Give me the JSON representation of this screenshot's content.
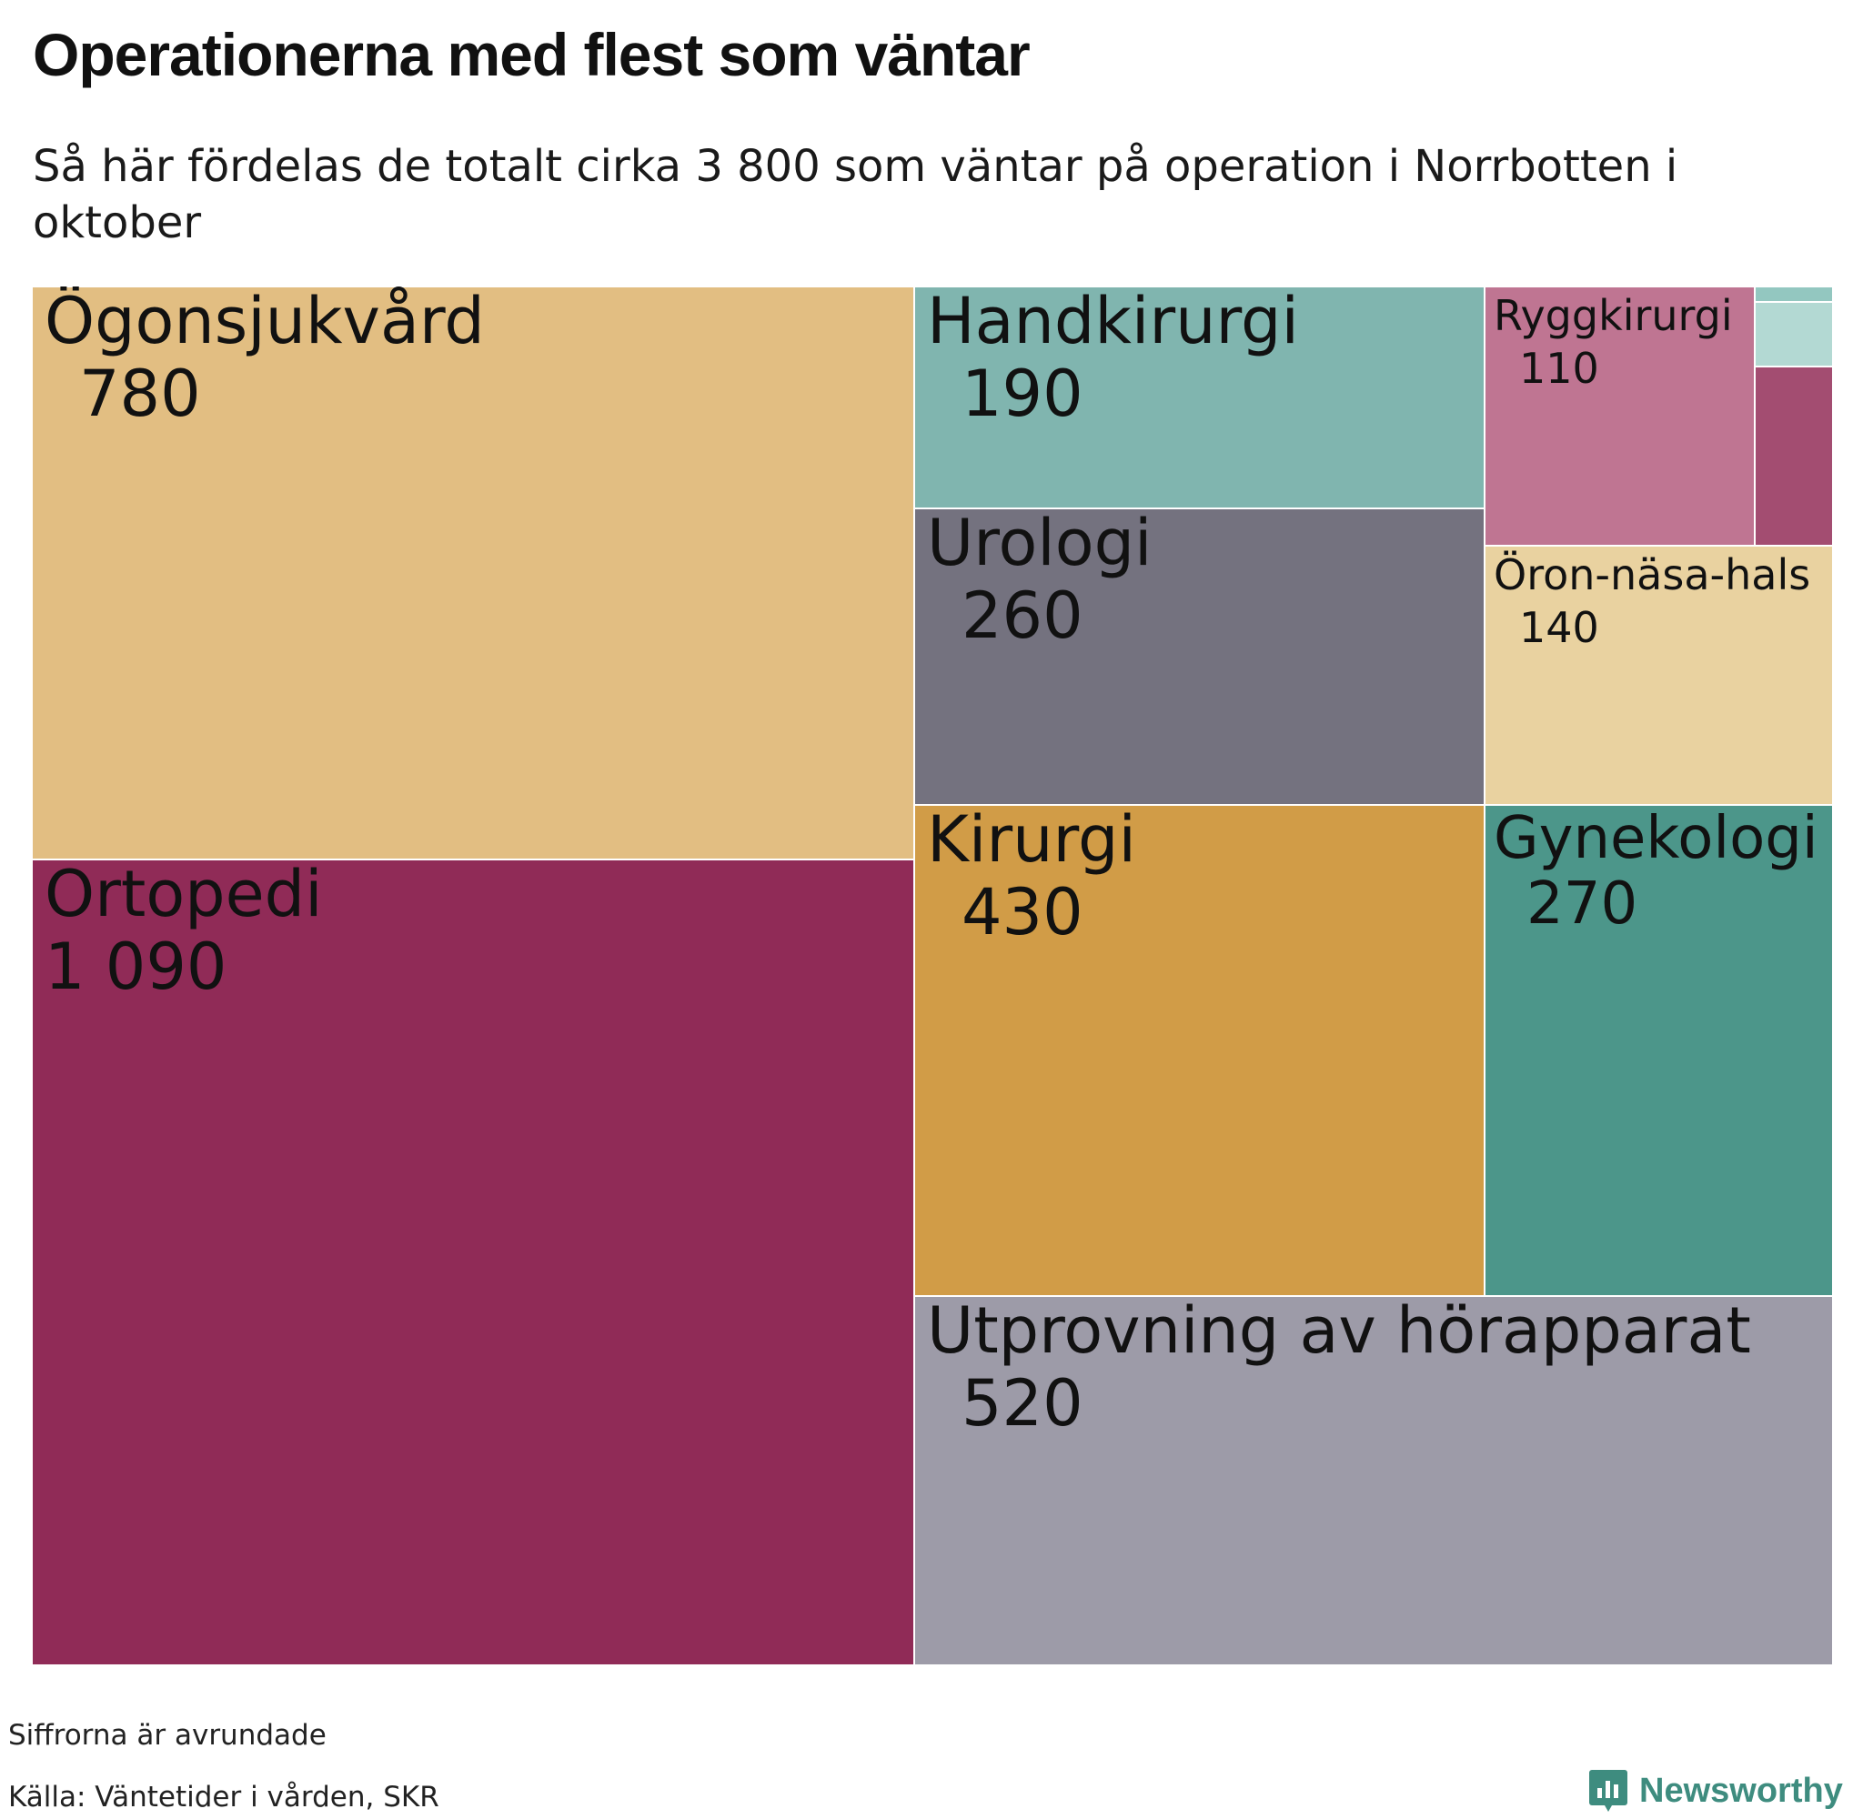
{
  "header": {
    "title": "Operationerna med flest som väntar",
    "subtitle": "Så här fördelas de totalt cirka 3 800 som väntar på operation i Norrbotten i oktober"
  },
  "footer": {
    "note": "Siffrorna är avrundade",
    "source": "Källa: Väntetider i vården, SKR",
    "brand": "Newsworthy"
  },
  "colors": {
    "brand": "#3e8c7f"
  },
  "chart_data": {
    "type": "treemap",
    "title": "Operationerna med flest som väntar",
    "subtitle": "Så här fördelas de totalt cirka 3 800 som väntar på operation i Norrbotten i oktober",
    "total_approx": 3800,
    "items": [
      {
        "label": "Ortopedi",
        "value": 1090,
        "value_label": "1 090",
        "color": "#902b57"
      },
      {
        "label": "Ögonsjukvård",
        "value": 780,
        "value_label": "780",
        "color": "#e2be82"
      },
      {
        "label": "Utprovning av hörapparat",
        "value": 520,
        "value_label": "520",
        "color": "#9d9ba8"
      },
      {
        "label": "Kirurgi",
        "value": 430,
        "value_label": "430",
        "color": "#d19c47"
      },
      {
        "label": "Gynekologi",
        "value": 270,
        "value_label": "270",
        "color": "#4c968a"
      },
      {
        "label": "Urologi",
        "value": 260,
        "value_label": "260",
        "color": "#74727f"
      },
      {
        "label": "Handkirurgi",
        "value": 190,
        "value_label": "190",
        "color": "#80b5af"
      },
      {
        "label": "Öron-näsa-hals",
        "value": 140,
        "value_label": "140",
        "color": "#e9d2a0"
      },
      {
        "label": "Ryggkirurgi",
        "value": 110,
        "value_label": "110",
        "color": "#bf7592"
      },
      {
        "label": "",
        "value": 30,
        "value_label": "",
        "color": "#a34d71"
      },
      {
        "label": "",
        "value": 15,
        "value_label": "",
        "color": "#b3d9d3"
      },
      {
        "label": "",
        "value": 5,
        "value_label": "",
        "color": "#93c7c0"
      }
    ]
  }
}
